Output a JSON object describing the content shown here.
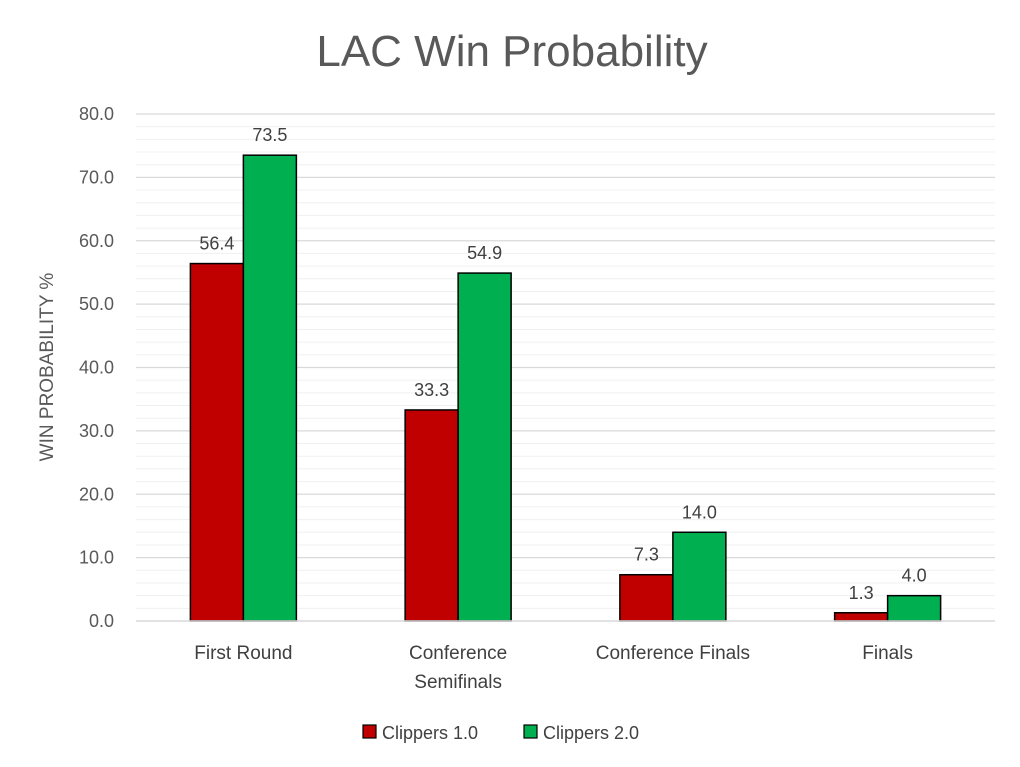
{
  "chart_data": {
    "type": "bar",
    "title": "LAC Win Probability",
    "xlabel": "",
    "ylabel": "WIN PROBABILITY %",
    "ylim": [
      0,
      80
    ],
    "yticks": [
      "0.0",
      "10.0",
      "20.0",
      "30.0",
      "40.0",
      "50.0",
      "60.0",
      "70.0",
      "80.0"
    ],
    "categories": [
      [
        "First Round"
      ],
      [
        "Conference",
        "Semifinals"
      ],
      [
        "Conference Finals"
      ],
      [
        "Finals"
      ]
    ],
    "series": [
      {
        "name": "Clippers 1.0",
        "color": "#c00000",
        "values": [
          56.4,
          33.3,
          7.3,
          1.3
        ],
        "labels": [
          "56.4",
          "33.3",
          "7.3",
          "1.3"
        ]
      },
      {
        "name": "Clippers 2.0",
        "color": "#00b050",
        "values": [
          73.5,
          54.9,
          14.0,
          4.0
        ],
        "labels": [
          "73.5",
          "54.9",
          "14.0",
          "4.0"
        ]
      }
    ],
    "grid": true,
    "legend_position": "bottom"
  }
}
